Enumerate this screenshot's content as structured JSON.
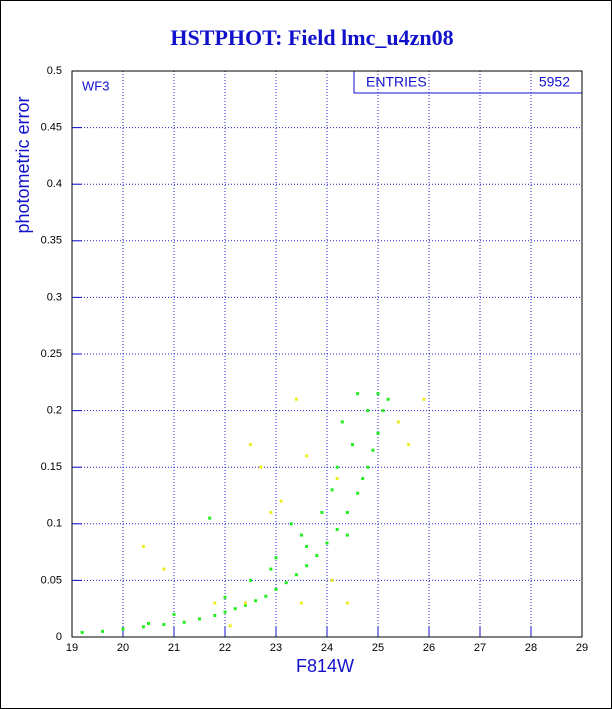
{
  "chart_data": {
    "type": "scatter",
    "title": "HSTPHOT: Field lmc_u4zn08",
    "x_label": "F814W",
    "y_label": "photometric error",
    "annotation": "WF3",
    "stats_label": "ENTRIES",
    "stats_value": "5952",
    "xlim": [
      19,
      29
    ],
    "ylim": [
      0,
      0.5
    ],
    "xticks": [
      19,
      20,
      21,
      22,
      23,
      24,
      25,
      26,
      27,
      28,
      29
    ],
    "yticks": [
      0,
      0.05,
      0.1,
      0.15,
      0.2,
      0.25,
      0.3,
      0.35,
      0.4,
      0.45,
      0.5
    ],
    "grid": true,
    "series": [
      {
        "color": "#22ee22",
        "x": [
          19.2,
          19.6,
          20.0,
          20.4,
          20.8,
          21.2,
          21.5,
          21.8,
          22.0,
          22.2,
          22.4,
          22.6,
          22.8,
          23.0,
          23.2,
          23.4,
          23.6,
          23.8,
          24.0,
          24.2,
          24.4,
          24.6,
          24.8,
          24.9,
          25.0,
          25.1,
          25.2,
          21.7,
          22.5,
          23.0,
          23.5,
          24.1,
          24.5,
          24.6,
          24.3,
          23.3,
          22.9,
          21.0,
          20.5,
          23.9,
          24.7,
          24.4,
          24.8,
          25.0,
          22.0,
          23.6,
          24.2
        ],
        "values": [
          0.004,
          0.005,
          0.007,
          0.009,
          0.011,
          0.013,
          0.016,
          0.019,
          0.022,
          0.025,
          0.028,
          0.032,
          0.036,
          0.042,
          0.048,
          0.055,
          0.063,
          0.072,
          0.083,
          0.095,
          0.11,
          0.127,
          0.15,
          0.165,
          0.18,
          0.2,
          0.21,
          0.105,
          0.05,
          0.07,
          0.09,
          0.13,
          0.17,
          0.215,
          0.19,
          0.1,
          0.06,
          0.02,
          0.012,
          0.11,
          0.14,
          0.09,
          0.2,
          0.215,
          0.035,
          0.08,
          0.15
        ]
      },
      {
        "color": "#eeee22",
        "x": [
          20.4,
          22.5,
          22.7,
          23.4,
          23.6,
          24.2,
          25.4,
          25.6,
          25.9,
          22.1,
          22.4,
          23.5,
          24.4,
          24.1,
          21.8,
          22.9,
          20.8,
          23.1
        ],
        "values": [
          0.08,
          0.17,
          0.15,
          0.21,
          0.16,
          0.14,
          0.19,
          0.17,
          0.21,
          0.01,
          0.03,
          0.03,
          0.03,
          0.05,
          0.03,
          0.11,
          0.06,
          0.12
        ]
      }
    ]
  }
}
